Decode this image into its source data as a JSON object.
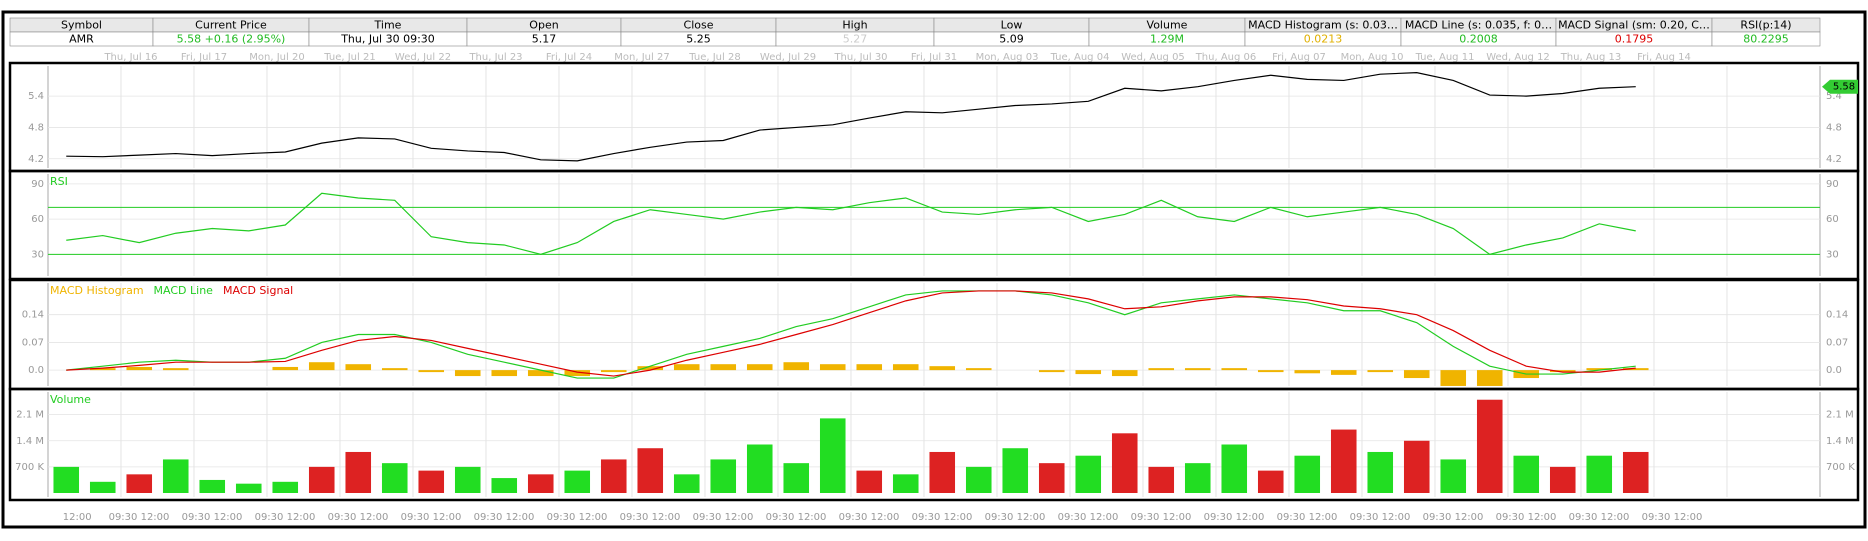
{
  "header": {
    "columns": [
      "Symbol",
      "Current Price",
      "Time",
      "Open",
      "Close",
      "High",
      "Low",
      "Volume",
      "MACD Histogram (s: 0.03…",
      "MACD Line (s: 0.035, f: 0…",
      "MACD Signal (sm: 0.20, C…",
      "RSI(p:14)"
    ],
    "row": [
      "AMR",
      "5.58 +0.16 (2.95%)",
      "Thu, Jul 30  09:30",
      5.17,
      5.25,
      5.27,
      5.09,
      "1.29M",
      0.0213,
      0.2008,
      0.1795,
      80.2295
    ]
  },
  "x_axis": {
    "date_labels": [
      "Thu, Jul 16",
      "Fri, Jul 17",
      "Mon, Jul 20",
      "Tue, Jul 21",
      "Wed, Jul 22",
      "Thu, Jul 23",
      "Fri, Jul 24",
      "Mon, Jul 27",
      "Tue, Jul 28",
      "Wed, Jul 29",
      "Thu, Jul 30",
      "Fri, Jul 31",
      "Mon, Aug 03",
      "Tue, Aug 04",
      "Wed, Aug 05",
      "Thu, Aug 06",
      "Fri, Aug 07",
      "Mon, Aug 10",
      "Tue, Aug 11",
      "Wed, Aug 12",
      "Thu, Aug 13",
      "Fri, Aug 14"
    ],
    "time_labels": [
      "12:00",
      "09:30 12:00",
      "09:30 12:00",
      "09:30 12:00",
      "09:30 12:00",
      "09:30 12:00",
      "09:30 12:00",
      "09:30 12:00",
      "09:30 12:00",
      "09:30 12:00",
      "09:30 12:00",
      "09:30 12:00",
      "09:30 12:00",
      "09:30 12:00",
      "09:30 12:00",
      "09:30 12:00",
      "09:30 12:00",
      "09:30 12:00",
      "09:30 12:00",
      "09:30 12:00",
      "09:30 12:00",
      "09:30 12:00",
      "09:30 12:00"
    ]
  },
  "chart_data": [
    {
      "type": "line",
      "color": "#000000",
      "last_price": 5.58,
      "last_color": "#33cc33",
      "values": [
        4.25,
        4.24,
        4.27,
        4.3,
        4.26,
        4.3,
        4.33,
        4.5,
        4.6,
        4.58,
        4.4,
        4.35,
        4.32,
        4.18,
        4.16,
        4.3,
        4.42,
        4.52,
        4.55,
        4.75,
        4.8,
        4.85,
        4.98,
        5.1,
        5.08,
        5.15,
        5.22,
        5.25,
        5.3,
        5.55,
        5.5,
        5.58,
        5.7,
        5.8,
        5.72,
        5.7,
        5.82,
        5.85,
        5.7,
        5.42,
        5.4,
        5.45,
        5.55,
        5.58
      ],
      "ylim": [
        4.1,
        5.9
      ],
      "yticks": [
        4.2,
        4.8,
        5.4
      ],
      "grid": true
    },
    {
      "type": "line",
      "title": "RSI",
      "color": "#22cc22",
      "values": [
        42,
        46,
        40,
        48,
        52,
        50,
        55,
        82,
        78,
        76,
        45,
        40,
        38,
        30,
        40,
        58,
        68,
        64,
        60,
        66,
        70,
        68,
        74,
        78,
        66,
        64,
        68,
        70,
        58,
        64,
        76,
        62,
        58,
        70,
        62,
        66,
        70,
        64,
        52,
        30,
        38,
        44,
        56,
        50
      ],
      "ylim": [
        15,
        95
      ],
      "yticks": [
        30,
        60,
        90
      ],
      "reference_lines": [
        30,
        70
      ],
      "grid": true
    },
    {
      "type": "combo",
      "series": [
        {
          "name": "MACD Histogram",
          "color": "#f0b400",
          "type": "bar",
          "values": [
            0,
            0.005,
            0.008,
            0.005,
            0,
            0,
            0.008,
            0.02,
            0.015,
            0.005,
            -0.005,
            -0.015,
            -0.015,
            -0.015,
            -0.015,
            -0.005,
            0.01,
            0.015,
            0.015,
            0.015,
            0.02,
            0.015,
            0.015,
            0.015,
            0.01,
            0.005,
            0,
            -0.005,
            -0.01,
            -0.015,
            0.005,
            0.005,
            0.005,
            -0.005,
            -0.008,
            -0.012,
            -0.005,
            -0.02,
            -0.04,
            -0.04,
            -0.02,
            -0.005,
            0.005,
            0.005
          ]
        },
        {
          "name": "MACD Line",
          "color": "#22cc22",
          "type": "line",
          "values": [
            0.0,
            0.01,
            0.02,
            0.025,
            0.02,
            0.02,
            0.03,
            0.07,
            0.09,
            0.09,
            0.07,
            0.04,
            0.02,
            0.0,
            -0.02,
            -0.02,
            0.01,
            0.04,
            0.06,
            0.08,
            0.11,
            0.13,
            0.16,
            0.19,
            0.2,
            0.2,
            0.2,
            0.19,
            0.17,
            0.14,
            0.17,
            0.18,
            0.19,
            0.18,
            0.17,
            0.15,
            0.15,
            0.12,
            0.06,
            0.01,
            -0.01,
            -0.01,
            0.0,
            0.01
          ]
        },
        {
          "name": "MACD Signal",
          "color": "#dd0000",
          "type": "line",
          "values": [
            0.0,
            0.005,
            0.012,
            0.02,
            0.02,
            0.02,
            0.022,
            0.05,
            0.075,
            0.085,
            0.075,
            0.055,
            0.035,
            0.015,
            -0.005,
            -0.015,
            0.0,
            0.025,
            0.045,
            0.065,
            0.09,
            0.115,
            0.145,
            0.175,
            0.195,
            0.2,
            0.2,
            0.195,
            0.18,
            0.155,
            0.16,
            0.175,
            0.185,
            0.185,
            0.178,
            0.162,
            0.155,
            0.14,
            0.1,
            0.05,
            0.01,
            -0.005,
            -0.005,
            0.005
          ]
        }
      ],
      "ylim": [
        -0.03,
        0.21
      ],
      "yticks": [
        {
          "value": 0,
          "label": "0.0"
        },
        0.07,
        0.14
      ],
      "grid": true
    },
    {
      "type": "bar",
      "title": "Volume",
      "title_color": "#22cc22",
      "values": [
        700000,
        300000,
        500000,
        900000,
        350000,
        250000,
        300000,
        700000,
        1100000,
        800000,
        600000,
        700000,
        400000,
        500000,
        600000,
        900000,
        1200000,
        500000,
        900000,
        1300000,
        800000,
        2000000,
        600000,
        500000,
        1100000,
        700000,
        1200000,
        800000,
        1000000,
        1600000,
        700000,
        800000,
        1300000,
        600000,
        1000000,
        1700000,
        1100000,
        1400000,
        900000,
        2500000,
        1000000,
        700000,
        1000000,
        1100000
      ],
      "colors": [
        "#22dd22",
        "#22dd22",
        "#dd2222",
        "#22dd22",
        "#22dd22",
        "#22dd22",
        "#22dd22",
        "#dd2222",
        "#dd2222",
        "#22dd22",
        "#dd2222",
        "#22dd22",
        "#22dd22",
        "#dd2222",
        "#22dd22",
        "#dd2222",
        "#dd2222",
        "#22dd22",
        "#22dd22",
        "#22dd22",
        "#22dd22",
        "#22dd22",
        "#dd2222",
        "#22dd22",
        "#dd2222",
        "#22dd22",
        "#22dd22",
        "#dd2222",
        "#22dd22",
        "#dd2222",
        "#dd2222",
        "#22dd22",
        "#22dd22",
        "#dd2222",
        "#22dd22",
        "#dd2222",
        "#22dd22",
        "#dd2222",
        "#22dd22",
        "#dd2222",
        "#22dd22",
        "#dd2222",
        "#22dd22",
        "#dd2222"
      ],
      "ylim": [
        0,
        2600000
      ],
      "yticks": [
        {
          "value": 700000,
          "label": "700 K"
        },
        {
          "value": 1400000,
          "label": "1.4 M"
        },
        {
          "value": 2100000,
          "label": "2.1 M"
        }
      ],
      "grid": true
    }
  ]
}
